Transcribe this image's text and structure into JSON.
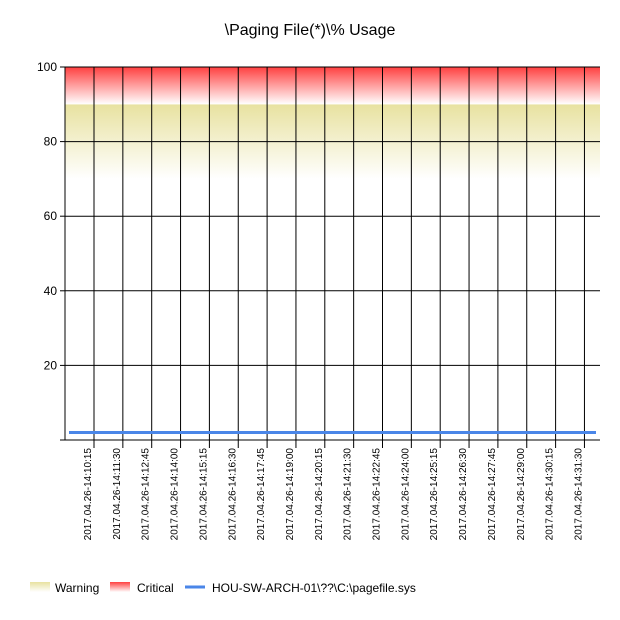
{
  "chart_data": {
    "type": "line",
    "title": "\\Paging File(*)\\% Usage",
    "ylim": [
      0,
      100
    ],
    "yticks": [
      20,
      40,
      60,
      80,
      100
    ],
    "grid": true,
    "legend_placement": "bottom-left",
    "categories": [
      "2017.04.26-14:10:15",
      "2017.04.26-14:11:30",
      "2017.04.26-14:12:45",
      "2017.04.26-14:14:00",
      "2017.04.26-14:15:15",
      "2017.04.26-14:16:30",
      "2017.04.26-14:17:45",
      "2017.04.26-14:19:00",
      "2017.04.26-14:20:15",
      "2017.04.26-14:21:30",
      "2017.04.26-14:22:45",
      "2017.04.26-14:24:00",
      "2017.04.26-14:25:15",
      "2017.04.26-14:26:30",
      "2017.04.26-14:27:45",
      "2017.04.26-14:29:00",
      "2017.04.26-14:30:15",
      "2017.04.26-14:31:30"
    ],
    "bands": [
      {
        "name": "Warning",
        "from": 70,
        "to": 90,
        "color": "#e8e2a0"
      },
      {
        "name": "Critical",
        "from": 90,
        "to": 100,
        "color": "#ff6060"
      }
    ],
    "series": [
      {
        "name": "HOU-SW-ARCH-01\\??\\C:\\pagefile.sys",
        "color": "#4a86e8",
        "values": [
          2,
          2,
          2,
          2,
          2,
          2,
          2,
          2,
          2,
          2,
          2,
          2,
          2,
          2,
          2,
          2,
          2,
          2
        ]
      }
    ]
  }
}
